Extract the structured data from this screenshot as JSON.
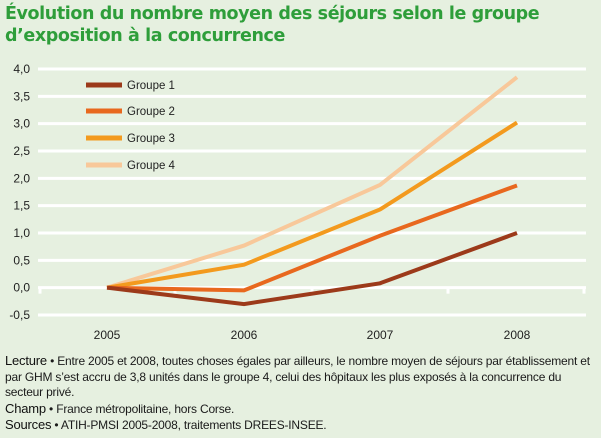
{
  "title": "Évolution du nombre moyen des séjours selon le groupe d’exposition à la concurrence",
  "chart_data": {
    "type": "line",
    "title": "Évolution du nombre moyen des séjours selon le groupe d’exposition à la concurrence",
    "xlabel": "",
    "ylabel": "",
    "x": [
      "2005",
      "2006",
      "2007",
      "2008"
    ],
    "ylim": [
      -0.5,
      4.0
    ],
    "yticks": [
      "4,0",
      "3,5",
      "3,0",
      "2,5",
      "2,0",
      "1,5",
      "1,0",
      "0,5",
      "0,0",
      "-0,5"
    ],
    "ytick_values": [
      4.0,
      3.5,
      3.0,
      2.5,
      2.0,
      1.5,
      1.0,
      0.5,
      0.0,
      -0.5
    ],
    "grid": true,
    "legend_position": "top-left",
    "series": [
      {
        "name": "Groupe 1",
        "color": "#9c3a1a",
        "values": [
          0.0,
          -0.3,
          0.08,
          1.0
        ]
      },
      {
        "name": "Groupe 2",
        "color": "#e8681e",
        "values": [
          0.0,
          -0.05,
          0.95,
          1.87
        ]
      },
      {
        "name": "Groupe 3",
        "color": "#f39a1e",
        "values": [
          0.0,
          0.42,
          1.43,
          3.02
        ]
      },
      {
        "name": "Groupe 4",
        "color": "#f8c89a",
        "values": [
          0.0,
          0.77,
          1.88,
          3.85
        ]
      }
    ]
  },
  "notes": {
    "lecture_label": "Lecture",
    "lecture_text": " • Entre 2005 et 2008, toutes choses égales par ailleurs, le nombre moyen de séjours par établissement et par GHM s’est accru de 3,8 unités dans le groupe 4, celui des hôpitaux les plus exposés à la concurrence du secteur privé.",
    "champ_label": "Champ",
    "champ_text": " • France métropolitaine, hors Corse.",
    "sources_label": "Sources",
    "sources_text": " • ATIH-PMSI 2005-2008, traitements DREES-INSEE."
  }
}
